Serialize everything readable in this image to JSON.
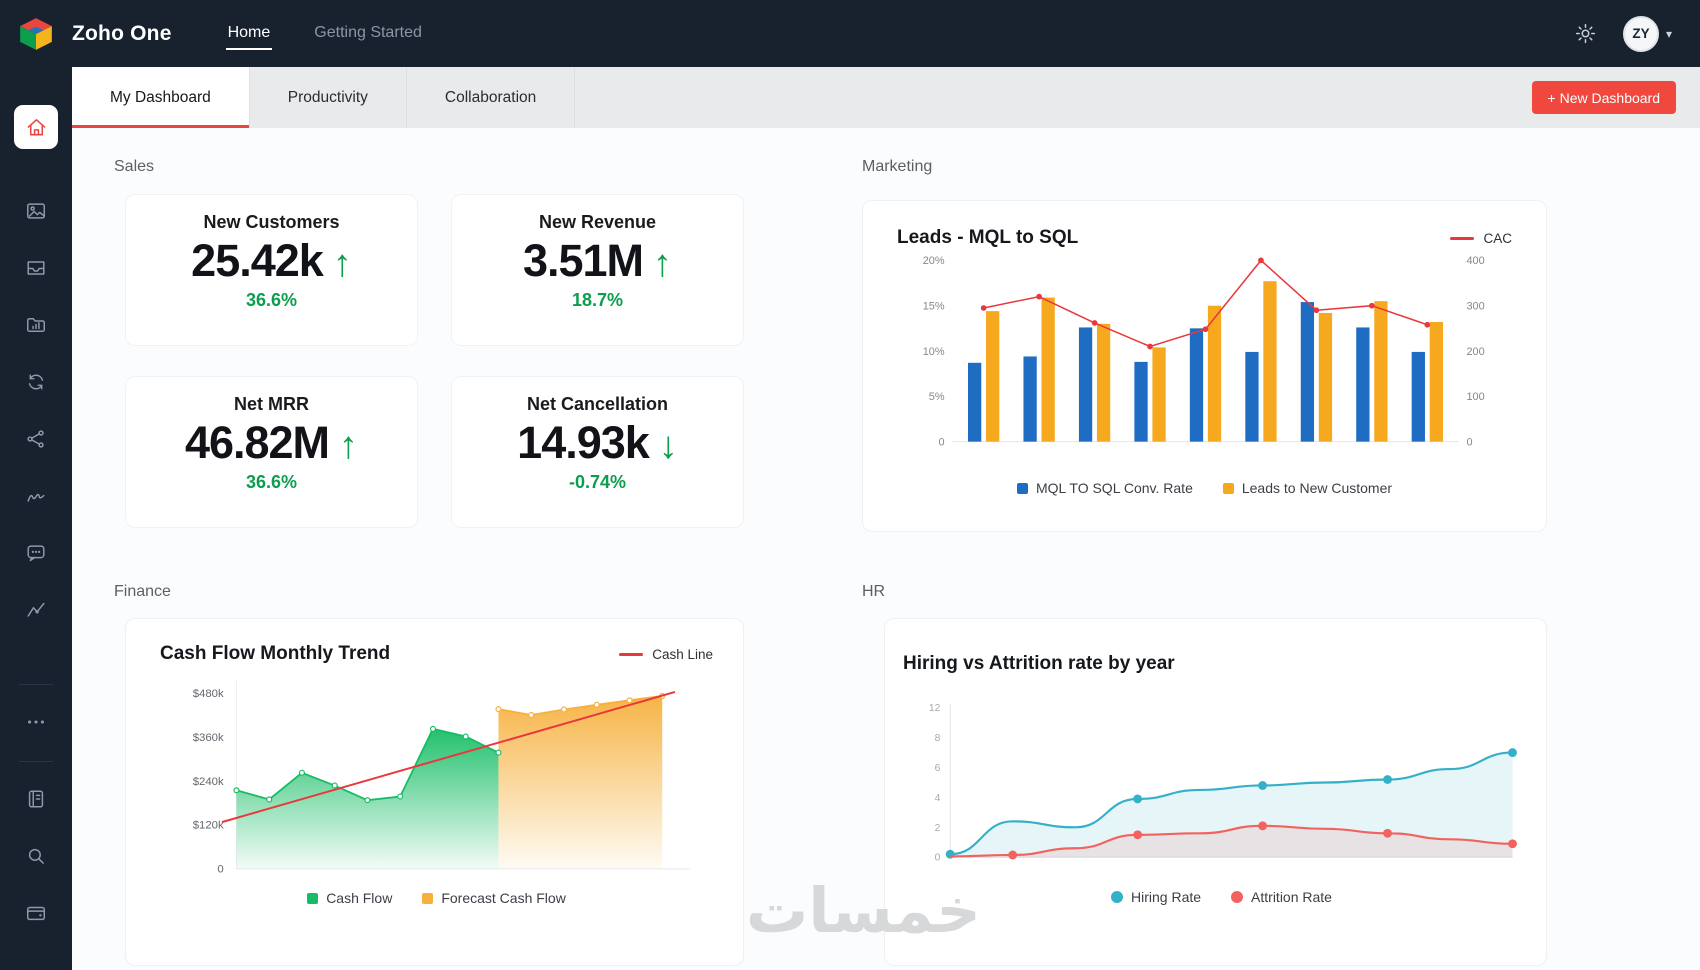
{
  "topbar": {
    "brand": "Zoho One",
    "nav": [
      {
        "label": "Home",
        "active": true
      },
      {
        "label": "Getting Started",
        "active": false
      }
    ],
    "avatar_initials": "ZY"
  },
  "sidebar": {
    "icons": [
      "home",
      "gallery",
      "inbox",
      "folder-analytics",
      "sync",
      "network",
      "signature",
      "chat",
      "analytics",
      "more",
      "notebook",
      "search",
      "wallet"
    ]
  },
  "tabbar": {
    "tabs": [
      {
        "label": "My Dashboard",
        "active": true
      },
      {
        "label": "Productivity",
        "active": false
      },
      {
        "label": "Collaboration",
        "active": false
      }
    ],
    "new_dashboard": "+ New Dashboard"
  },
  "sections": {
    "sales": {
      "title": "Sales",
      "kpis": [
        {
          "label": "New Customers",
          "value": "25.42k",
          "arrow": "↑",
          "trend": "up",
          "delta": "36.6%"
        },
        {
          "label": "New Revenue",
          "value": "3.51M",
          "arrow": "↑",
          "trend": "up",
          "delta": "18.7%"
        },
        {
          "label": "Net MRR",
          "value": "46.82M",
          "arrow": "↑",
          "trend": "up",
          "delta": "36.6%"
        },
        {
          "label": "Net Cancellation",
          "value": "14.93k",
          "arrow": "↓",
          "trend": "down",
          "delta": "-0.74%"
        }
      ]
    },
    "marketing": {
      "title": "Marketing"
    },
    "finance": {
      "title": "Finance"
    },
    "hr": {
      "title": "HR"
    }
  },
  "watermark": "خمسات",
  "colors": {
    "topbar_bg": "#18212e",
    "accent_red": "#f0483e",
    "kpi_green": "#0d9d4e",
    "bar_blue": "#1f6dc2",
    "bar_yellow": "#f6a81f",
    "line_red": "#e8383d",
    "area_green": "#17bd66",
    "area_orange": "#f6b03c",
    "teal": "#35b0c9",
    "attrition_red": "#f2635f"
  },
  "chart_data": [
    {
      "id": "leads-mql-to-sql",
      "type": "bar",
      "title": "Leads - MQL to SQL",
      "left_axis": {
        "ticks": [
          0,
          5,
          10,
          15,
          20
        ],
        "unit": "%",
        "max": 20
      },
      "right_axis": {
        "ticks": [
          0,
          100,
          200,
          300,
          400
        ],
        "max": 400
      },
      "series": [
        {
          "name": "MQL TO SQL Conv. Rate",
          "color": "#1f6dc2",
          "axis": "left",
          "values": [
            8.7,
            9.4,
            12.6,
            8.8,
            12.5,
            9.9,
            15.4,
            12.6,
            9.9
          ]
        },
        {
          "name": "Leads to New Customer",
          "color": "#f6a81f",
          "axis": "left",
          "values": [
            14.4,
            15.9,
            13.0,
            10.4,
            15.0,
            17.7,
            14.2,
            15.5,
            13.2
          ]
        }
      ],
      "line": {
        "name": "CAC",
        "color": "#e8383d",
        "axis": "right",
        "values": [
          295,
          320,
          262,
          210,
          248,
          400,
          290,
          300,
          258
        ]
      },
      "legend_position": "bottom",
      "grid": false
    },
    {
      "id": "cash-flow-monthly-trend",
      "type": "area",
      "title": "Cash Flow Monthly Trend",
      "y_axis": {
        "ticks": [
          0,
          120,
          240,
          360,
          480
        ],
        "labels": [
          "0",
          "$120k",
          "$240k",
          "$360k",
          "$480k"
        ],
        "max": 500
      },
      "x_slots": 14,
      "series": [
        {
          "name": "Cash Flow",
          "color": "#17bd66",
          "start_index": 0,
          "values": [
            215,
            190,
            263,
            228,
            188,
            198,
            383,
            362,
            318
          ]
        },
        {
          "name": "Forecast Cash Flow",
          "color": "#f6b03c",
          "start_index": 8,
          "values": [
            437,
            421,
            436,
            449,
            461,
            473
          ]
        }
      ],
      "trend_line": {
        "name": "Cash Line",
        "color": "#e8383d",
        "start": 128,
        "end": 484
      },
      "legend_position": "bottom",
      "grid": false
    },
    {
      "id": "hiring-vs-attrition",
      "type": "line",
      "title": "Hiring vs Attrition rate by year",
      "y_axis": {
        "ticks": [
          0,
          2,
          4,
          6,
          8,
          12
        ]
      },
      "series": [
        {
          "name": "Hiring Rate",
          "color": "#35b0c9",
          "values": [
            0.2,
            2.4,
            2.0,
            3.9,
            4.5,
            4.8,
            5.0,
            5.2,
            5.9,
            7.0
          ],
          "dot_indices": [
            0,
            3,
            5,
            7,
            9
          ]
        },
        {
          "name": "Attrition Rate",
          "color": "#f2635f",
          "values": [
            0.05,
            0.15,
            0.6,
            1.5,
            1.6,
            2.1,
            1.9,
            1.6,
            1.2,
            0.9
          ],
          "dot_indices": [
            1,
            3,
            5,
            7,
            9
          ]
        }
      ],
      "legend_position": "bottom",
      "grid": false
    }
  ]
}
